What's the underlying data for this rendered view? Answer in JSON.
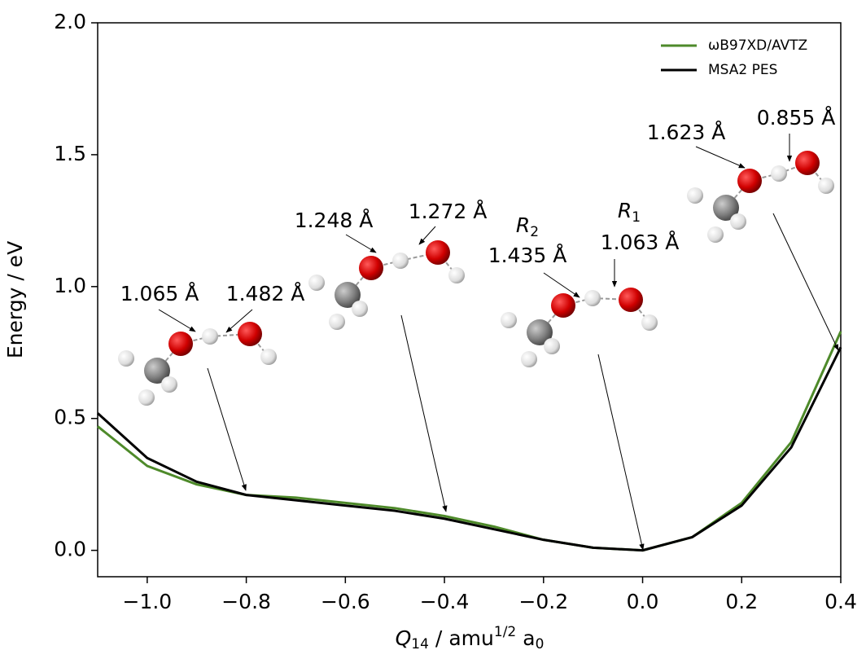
{
  "chart_data": {
    "type": "line",
    "ylabel": "Energy / eV",
    "xlabel": {
      "symbol": "Q",
      "symbol_sub": "14",
      "separator": "/",
      "unit": "amu",
      "unit_sup": "1/2",
      "unit2": "a",
      "unit2_sub": "0"
    },
    "x": [
      -1.1,
      -1.0,
      -0.9,
      -0.8,
      -0.7,
      -0.6,
      -0.5,
      -0.4,
      -0.3,
      -0.2,
      -0.1,
      0.0,
      0.1,
      0.2,
      0.3,
      0.4
    ],
    "series": [
      {
        "name": "ωB97XD/AVTZ",
        "color": "#4e8a2a",
        "values": [
          0.47,
          0.32,
          0.25,
          0.21,
          0.2,
          0.18,
          0.16,
          0.13,
          0.09,
          0.04,
          0.01,
          0.0,
          0.05,
          0.18,
          0.41,
          0.83
        ]
      },
      {
        "name": "MSA2 PES",
        "color": "#000000",
        "values": [
          0.52,
          0.35,
          0.26,
          0.21,
          0.19,
          0.17,
          0.15,
          0.12,
          0.08,
          0.04,
          0.01,
          0.0,
          0.05,
          0.17,
          0.39,
          0.77
        ]
      }
    ],
    "xlim": [
      -1.1,
      0.4
    ],
    "ylim": [
      -0.1,
      2.0
    ],
    "xticks": [
      {
        "value": -1.0,
        "label": "−1.0"
      },
      {
        "value": -0.8,
        "label": "−0.8"
      },
      {
        "value": -0.6,
        "label": "−0.6"
      },
      {
        "value": -0.4,
        "label": "−0.4"
      },
      {
        "value": -0.2,
        "label": "−0.2"
      },
      {
        "value": 0,
        "label": "0.0"
      },
      0.2,
      0.4
    ],
    "yticks": [
      {
        "value": 0,
        "label": "0.0"
      },
      0.5,
      {
        "value": 1,
        "label": "1.0"
      },
      1.5,
      {
        "value": 2,
        "label": "2.0"
      }
    ],
    "legend": "upper right",
    "annotations": [
      "1.065 Å",
      "1.482 Å",
      "1.248 Å",
      "1.272 Å",
      "1.435 Å",
      "1.063 Å",
      "1.623 Å",
      "0.855 Å"
    ],
    "r_labels": [
      {
        "symbol": "R",
        "subscript": "2"
      },
      {
        "symbol": "R",
        "subscript": "1"
      }
    ]
  }
}
